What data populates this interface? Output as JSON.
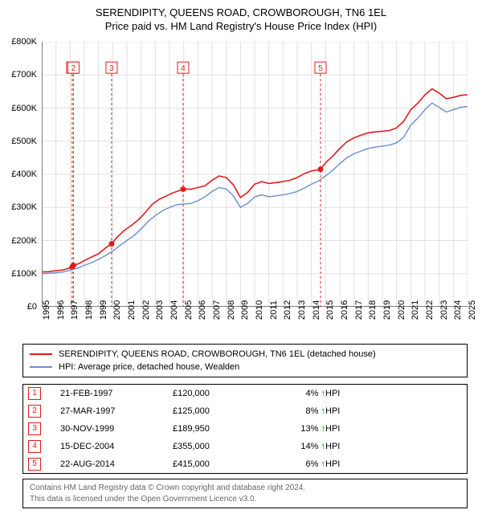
{
  "title1": "SERENDIPITY, QUEENS ROAD, CROWBOROUGH, TN6 1EL",
  "title2": "Price paid vs. HM Land Registry's House Price Index (HPI)",
  "chart": {
    "type": "line",
    "background_color": "#ffffff",
    "grid_color": "#e0e0e0",
    "axis_color": "#000000",
    "title_fontsize": 13,
    "tick_fontsize": 11,
    "x_start": 1995,
    "x_end": 2025,
    "x_tick_step": 1,
    "y_start": 0,
    "y_end": 800000,
    "y_tick_step": 100000,
    "y_tick_labels": [
      "£0",
      "£100K",
      "£200K",
      "£300K",
      "£400K",
      "£500K",
      "£600K",
      "£700K",
      "£800K"
    ],
    "series": [
      {
        "name": "SERENDIPITY, QUEENS ROAD, CROWBOROUGH, TN6 1EL (detached house)",
        "color": "#e31a1c",
        "line_width": 1.6,
        "points": [
          [
            1995.0,
            105000
          ],
          [
            1995.5,
            106000
          ],
          [
            1996.0,
            109000
          ],
          [
            1996.5,
            111000
          ],
          [
            1997.14,
            120000
          ],
          [
            1997.23,
            125000
          ],
          [
            1997.6,
            130000
          ],
          [
            1998.0,
            140000
          ],
          [
            1998.5,
            150000
          ],
          [
            1999.0,
            160000
          ],
          [
            1999.5,
            178000
          ],
          [
            1999.92,
            189950
          ],
          [
            2000.3,
            210000
          ],
          [
            2000.8,
            230000
          ],
          [
            2001.3,
            245000
          ],
          [
            2001.8,
            262000
          ],
          [
            2002.3,
            285000
          ],
          [
            2002.8,
            310000
          ],
          [
            2003.3,
            325000
          ],
          [
            2003.8,
            335000
          ],
          [
            2004.3,
            345000
          ],
          [
            2004.96,
            355000
          ],
          [
            2005.5,
            355000
          ],
          [
            2006.0,
            360000
          ],
          [
            2006.5,
            365000
          ],
          [
            2007.0,
            382000
          ],
          [
            2007.5,
            395000
          ],
          [
            2008.0,
            390000
          ],
          [
            2008.5,
            368000
          ],
          [
            2009.0,
            330000
          ],
          [
            2009.5,
            345000
          ],
          [
            2010.0,
            370000
          ],
          [
            2010.5,
            378000
          ],
          [
            2011.0,
            372000
          ],
          [
            2011.5,
            375000
          ],
          [
            2012.0,
            378000
          ],
          [
            2012.5,
            382000
          ],
          [
            2013.0,
            390000
          ],
          [
            2013.5,
            402000
          ],
          [
            2014.0,
            410000
          ],
          [
            2014.64,
            415000
          ],
          [
            2015.0,
            435000
          ],
          [
            2015.5,
            455000
          ],
          [
            2016.0,
            478000
          ],
          [
            2016.5,
            498000
          ],
          [
            2017.0,
            510000
          ],
          [
            2017.5,
            518000
          ],
          [
            2018.0,
            525000
          ],
          [
            2018.5,
            528000
          ],
          [
            2019.0,
            530000
          ],
          [
            2019.5,
            532000
          ],
          [
            2020.0,
            540000
          ],
          [
            2020.5,
            560000
          ],
          [
            2021.0,
            595000
          ],
          [
            2021.5,
            615000
          ],
          [
            2022.0,
            640000
          ],
          [
            2022.5,
            658000
          ],
          [
            2023.0,
            645000
          ],
          [
            2023.5,
            628000
          ],
          [
            2024.0,
            632000
          ],
          [
            2024.5,
            638000
          ],
          [
            2025.0,
            640000
          ]
        ]
      },
      {
        "name": "HPI: Average price, detached house, Wealden",
        "color": "#6a8fc9",
        "line_width": 1.4,
        "points": [
          [
            1995.0,
            100000
          ],
          [
            1995.5,
            101000
          ],
          [
            1996.0,
            103000
          ],
          [
            1996.5,
            105000
          ],
          [
            1997.0,
            110000
          ],
          [
            1997.5,
            116000
          ],
          [
            1998.0,
            125000
          ],
          [
            1998.5,
            133000
          ],
          [
            1999.0,
            143000
          ],
          [
            1999.5,
            155000
          ],
          [
            2000.0,
            168000
          ],
          [
            2000.5,
            185000
          ],
          [
            2001.0,
            200000
          ],
          [
            2001.5,
            215000
          ],
          [
            2002.0,
            235000
          ],
          [
            2002.5,
            258000
          ],
          [
            2003.0,
            275000
          ],
          [
            2003.5,
            290000
          ],
          [
            2004.0,
            300000
          ],
          [
            2004.5,
            308000
          ],
          [
            2005.0,
            310000
          ],
          [
            2005.5,
            312000
          ],
          [
            2006.0,
            320000
          ],
          [
            2006.5,
            332000
          ],
          [
            2007.0,
            348000
          ],
          [
            2007.5,
            360000
          ],
          [
            2008.0,
            355000
          ],
          [
            2008.5,
            335000
          ],
          [
            2009.0,
            300000
          ],
          [
            2009.5,
            312000
          ],
          [
            2010.0,
            332000
          ],
          [
            2010.5,
            338000
          ],
          [
            2011.0,
            332000
          ],
          [
            2011.5,
            335000
          ],
          [
            2012.0,
            338000
          ],
          [
            2012.5,
            342000
          ],
          [
            2013.0,
            348000
          ],
          [
            2013.5,
            358000
          ],
          [
            2014.0,
            370000
          ],
          [
            2014.5,
            380000
          ],
          [
            2015.0,
            395000
          ],
          [
            2015.5,
            412000
          ],
          [
            2016.0,
            432000
          ],
          [
            2016.5,
            450000
          ],
          [
            2017.0,
            462000
          ],
          [
            2017.5,
            470000
          ],
          [
            2018.0,
            478000
          ],
          [
            2018.5,
            482000
          ],
          [
            2019.0,
            485000
          ],
          [
            2019.5,
            488000
          ],
          [
            2020.0,
            495000
          ],
          [
            2020.5,
            512000
          ],
          [
            2021.0,
            548000
          ],
          [
            2021.5,
            570000
          ],
          [
            2022.0,
            595000
          ],
          [
            2022.5,
            615000
          ],
          [
            2023.0,
            602000
          ],
          [
            2023.5,
            588000
          ],
          [
            2024.0,
            595000
          ],
          [
            2024.5,
            602000
          ],
          [
            2025.0,
            605000
          ]
        ]
      }
    ],
    "sale_markers": [
      {
        "n": 1,
        "year": 1997.14,
        "price": 120000,
        "color": "#e31a1c"
      },
      {
        "n": 2,
        "year": 1997.23,
        "price": 125000,
        "color": "#e31a1c"
      },
      {
        "n": 3,
        "year": 1999.92,
        "price": 189950,
        "color": "#e31a1c"
      },
      {
        "n": 4,
        "year": 2004.96,
        "price": 355000,
        "color": "#e31a1c"
      },
      {
        "n": 5,
        "year": 2014.64,
        "price": 415000,
        "color": "#e31a1c"
      }
    ],
    "marker_box_top_value": 722000,
    "vline_color": "#e31a1c",
    "vline_dash": "3,3"
  },
  "legend": {
    "items": [
      {
        "label": "SERENDIPITY, QUEENS ROAD, CROWBOROUGH, TN6 1EL (detached house)",
        "color": "#e31a1c"
      },
      {
        "label": "HPI: Average price, detached house, Wealden",
        "color": "#6a8fc9"
      }
    ]
  },
  "sales": [
    {
      "n": "1",
      "date": "21-FEB-1997",
      "price": "£120,000",
      "pct": "4%",
      "arrow": "↑",
      "vs": "HPI",
      "color": "#e31a1c"
    },
    {
      "n": "2",
      "date": "27-MAR-1997",
      "price": "£125,000",
      "pct": "8%",
      "arrow": "↑",
      "vs": "HPI",
      "color": "#e31a1c"
    },
    {
      "n": "3",
      "date": "30-NOV-1999",
      "price": "£189,950",
      "pct": "13%",
      "arrow": "↑",
      "vs": "HPI",
      "color": "#e31a1c"
    },
    {
      "n": "4",
      "date": "15-DEC-2004",
      "price": "£355,000",
      "pct": "14%",
      "arrow": "↑",
      "vs": "HPI",
      "color": "#e31a1c"
    },
    {
      "n": "5",
      "date": "22-AUG-2014",
      "price": "£415,000",
      "pct": "6%",
      "arrow": "↑",
      "vs": "HPI",
      "color": "#e31a1c"
    }
  ],
  "attribution_line1": "Contains HM Land Registry data © Crown copyright and database right 2024.",
  "attribution_line2": "This data is licensed under the Open Government Licence v3.0."
}
